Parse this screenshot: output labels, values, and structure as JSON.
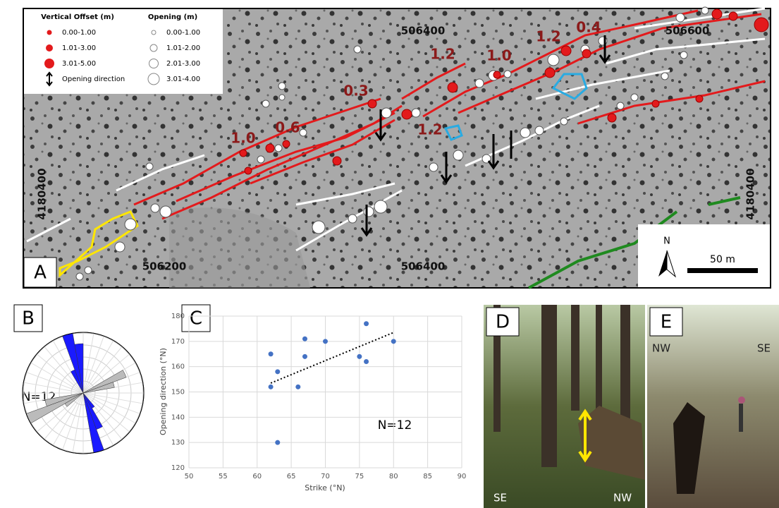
{
  "map": {
    "panel": "A",
    "legend": {
      "offset_title": "Vertical Offset (m)",
      "offset_items": [
        "0.00-1.00",
        "1.01-3.00",
        "3.01-5.00"
      ],
      "direction": "Opening direction",
      "opening_title": "Opening (m)",
      "opening_items": [
        "0.00-1.00",
        "1.01-2.00",
        "2.01-3.00",
        "3.01-4.00"
      ]
    },
    "coords": {
      "top": [
        "506400",
        "506600"
      ],
      "bottom": [
        "506200",
        "506400"
      ],
      "left": "4180400",
      "right": "4180400"
    },
    "offsets": [
      "1.0",
      "0.6",
      "0.3",
      "1.2",
      "1.2",
      "1.0",
      "1.2",
      "0.4"
    ],
    "north": "N",
    "scale": "50 m"
  },
  "rose": {
    "panel": "B",
    "annotation": "N=12"
  },
  "chart_data": {
    "type": "scatter",
    "panel": "C",
    "x_label": "Strike (°N)",
    "y_label": "Opening direction (°N)",
    "annotation": "N=12",
    "x": [
      62,
      62,
      63,
      63,
      66,
      67,
      67,
      70,
      75,
      76,
      76,
      80
    ],
    "y": [
      165,
      152,
      158,
      130,
      152,
      171,
      164,
      170,
      164,
      177,
      162,
      170
    ],
    "color": "#4472c4",
    "trendline": {
      "x": [
        62,
        80
      ],
      "y": [
        153.5,
        173.5
      ]
    },
    "xlim": [
      50,
      90
    ],
    "xticks": [
      50,
      55,
      60,
      65,
      70,
      75,
      80,
      85,
      90
    ],
    "ylim": [
      120,
      180
    ],
    "yticks": [
      120,
      130,
      140,
      150,
      160,
      170,
      180
    ],
    "grid": true
  },
  "photos": {
    "d": {
      "panel": "D",
      "left": "SE",
      "right": "NW"
    },
    "e": {
      "panel": "E",
      "left": "NW",
      "right": "SE"
    }
  }
}
